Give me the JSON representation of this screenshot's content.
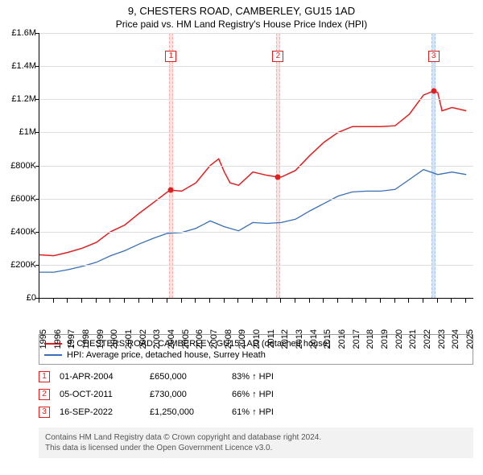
{
  "title_line1": "9, CHESTERS ROAD, CAMBERLEY, GU15 1AD",
  "title_line2": "Price paid vs. HM Land Registry's House Price Index (HPI)",
  "chart": {
    "type": "line",
    "background_color": "#ffffff",
    "grid_color": "#dddddd",
    "axis_fontsize": 11,
    "title_fontsize": 13,
    "y": {
      "min": 0,
      "max": 1600000,
      "tick_step": 200000,
      "labels": [
        "£0",
        "£200K",
        "£400K",
        "£600K",
        "£800K",
        "£1M",
        "£1.2M",
        "£1.4M",
        "£1.6M"
      ]
    },
    "x": {
      "min": 1995,
      "max": 2025.5,
      "ticks": [
        1995,
        1996,
        1997,
        1998,
        1999,
        2000,
        2001,
        2002,
        2003,
        2004,
        2005,
        2006,
        2007,
        2008,
        2009,
        2010,
        2011,
        2012,
        2013,
        2014,
        2015,
        2016,
        2017,
        2018,
        2019,
        2020,
        2021,
        2022,
        2023,
        2024,
        2025
      ],
      "labels": [
        "1995",
        "1996",
        "1997",
        "1998",
        "1999",
        "2000",
        "2001",
        "2002",
        "2003",
        "2004",
        "2005",
        "2006",
        "2007",
        "2008",
        "2009",
        "2010",
        "2011",
        "2012",
        "2013",
        "2014",
        "2015",
        "2016",
        "2017",
        "2018",
        "2019",
        "2020",
        "2021",
        "2022",
        "2023",
        "2024",
        "2025"
      ]
    },
    "series": [
      {
        "name": "9, CHESTERS ROAD, CAMBERLEY, GU15 1AD (detached house)",
        "color": "#e02020",
        "line_width": 1.5,
        "data": [
          [
            1995,
            260000
          ],
          [
            1996,
            255000
          ],
          [
            1997,
            275000
          ],
          [
            1998,
            300000
          ],
          [
            1999,
            335000
          ],
          [
            2000,
            400000
          ],
          [
            2001,
            440000
          ],
          [
            2002,
            510000
          ],
          [
            2003,
            575000
          ],
          [
            2004,
            640000
          ],
          [
            2004.25,
            650000
          ],
          [
            2005,
            645000
          ],
          [
            2006,
            695000
          ],
          [
            2007,
            800000
          ],
          [
            2007.6,
            840000
          ],
          [
            2008,
            760000
          ],
          [
            2008.4,
            695000
          ],
          [
            2009,
            680000
          ],
          [
            2010,
            760000
          ],
          [
            2011,
            740000
          ],
          [
            2011.77,
            730000
          ],
          [
            2012,
            730000
          ],
          [
            2013,
            770000
          ],
          [
            2014,
            860000
          ],
          [
            2015,
            940000
          ],
          [
            2016,
            1000000
          ],
          [
            2017,
            1035000
          ],
          [
            2018,
            1035000
          ],
          [
            2019,
            1035000
          ],
          [
            2020,
            1040000
          ],
          [
            2021,
            1110000
          ],
          [
            2022,
            1225000
          ],
          [
            2022.7,
            1250000
          ],
          [
            2023,
            1240000
          ],
          [
            2023.3,
            1130000
          ],
          [
            2024,
            1150000
          ],
          [
            2025,
            1130000
          ]
        ]
      },
      {
        "name": "HPI: Average price, detached house, Surrey Heath",
        "color": "#3a6fb7",
        "line_width": 1.3,
        "data": [
          [
            1995,
            155000
          ],
          [
            1996,
            155000
          ],
          [
            1997,
            170000
          ],
          [
            1998,
            190000
          ],
          [
            1999,
            215000
          ],
          [
            2000,
            255000
          ],
          [
            2001,
            285000
          ],
          [
            2002,
            325000
          ],
          [
            2003,
            360000
          ],
          [
            2004,
            390000
          ],
          [
            2005,
            395000
          ],
          [
            2006,
            420000
          ],
          [
            2007,
            465000
          ],
          [
            2008,
            430000
          ],
          [
            2009,
            405000
          ],
          [
            2010,
            455000
          ],
          [
            2011,
            450000
          ],
          [
            2012,
            455000
          ],
          [
            2013,
            475000
          ],
          [
            2014,
            525000
          ],
          [
            2015,
            570000
          ],
          [
            2016,
            615000
          ],
          [
            2017,
            640000
          ],
          [
            2018,
            645000
          ],
          [
            2019,
            645000
          ],
          [
            2020,
            655000
          ],
          [
            2021,
            715000
          ],
          [
            2022,
            775000
          ],
          [
            2023,
            745000
          ],
          [
            2024,
            760000
          ],
          [
            2025,
            745000
          ]
        ]
      }
    ],
    "bands": [
      {
        "x": 2004.25,
        "width": 0.28,
        "fill": "#fde0e0",
        "edge": "#f0b0b0"
      },
      {
        "x": 2011.77,
        "width": 0.28,
        "fill": "#fde0e0",
        "edge": "#f0b0b0"
      },
      {
        "x": 2022.71,
        "width": 0.28,
        "fill": "#d6e4f5",
        "edge": "#aac4e6"
      }
    ],
    "markers": [
      {
        "label": "1",
        "x": 2004.25,
        "y": 1460000,
        "point_y": 650000,
        "color": "#e02020"
      },
      {
        "label": "2",
        "x": 2011.77,
        "y": 1460000,
        "point_y": 730000,
        "color": "#e02020"
      },
      {
        "label": "3",
        "x": 2022.71,
        "y": 1460000,
        "point_y": 1250000,
        "color": "#e02020"
      }
    ]
  },
  "legend": [
    {
      "color": "#e02020",
      "label": "9, CHESTERS ROAD, CAMBERLEY, GU15 1AD (detached house)"
    },
    {
      "color": "#3a6fb7",
      "label": "HPI: Average price, detached house, Surrey Heath"
    }
  ],
  "events": [
    {
      "n": "1",
      "color": "#e02020",
      "date": "01-APR-2004",
      "price": "£650,000",
      "pct": "83% ↑ HPI"
    },
    {
      "n": "2",
      "color": "#e02020",
      "date": "05-OCT-2011",
      "price": "£730,000",
      "pct": "66% ↑ HPI"
    },
    {
      "n": "3",
      "color": "#e02020",
      "date": "16-SEP-2022",
      "price": "£1,250,000",
      "pct": "61% ↑ HPI"
    }
  ],
  "footer_line1": "Contains HM Land Registry data © Crown copyright and database right 2024.",
  "footer_line2": "This data is licensed under the Open Government Licence v3.0."
}
